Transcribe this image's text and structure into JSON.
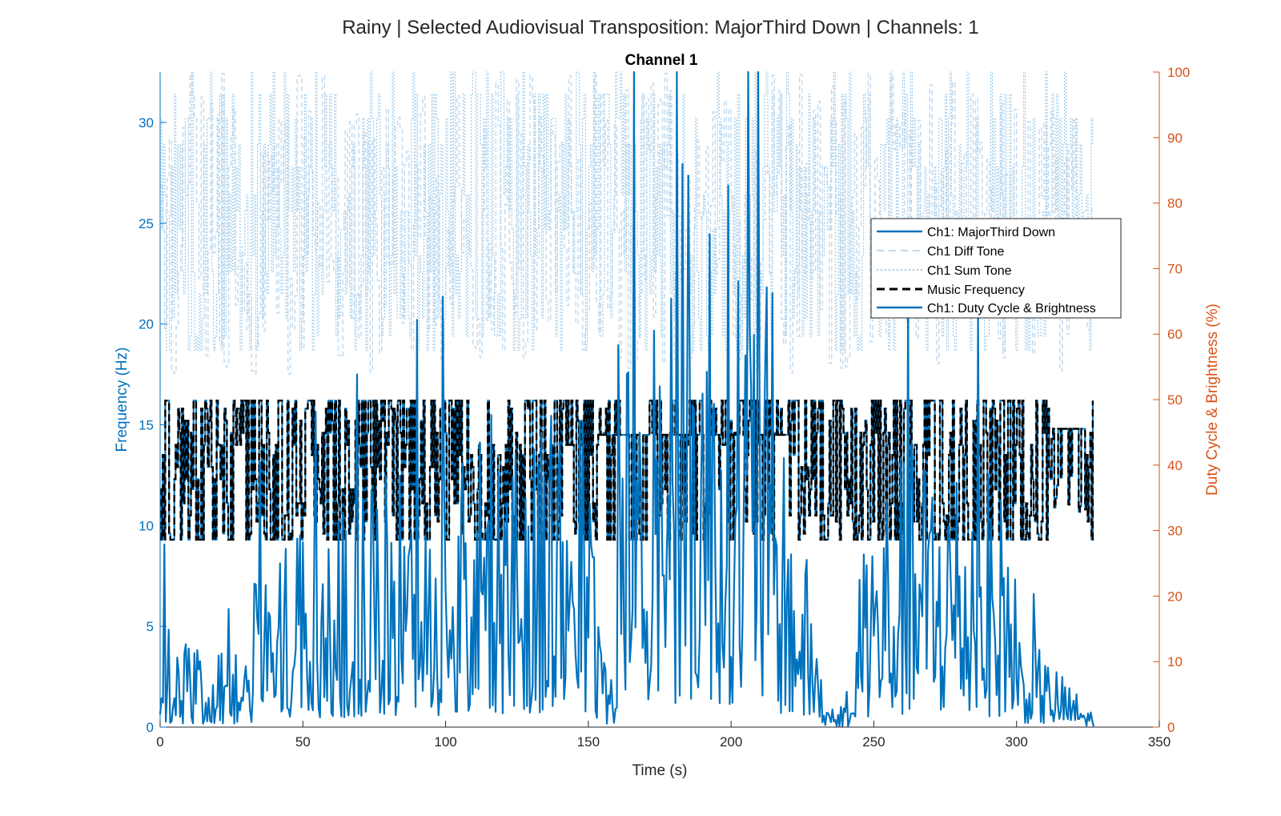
{
  "colors": {
    "left_axis": "#0072BD",
    "right_axis": "#D95319",
    "main_freq": "#0072BD",
    "diff_tone": "#BFD9EF",
    "sum_tone": "#7FB8E0",
    "music_freq": "#000000",
    "duty": "#0072BD",
    "axis_black": "#262626"
  },
  "chart_data": {
    "type": "line",
    "suptitle": "Rainy | Selected Audiovisual Transposition: MajorThird Down | Channels: 1",
    "title": "Channel 1",
    "xlabel": "Time (s)",
    "ylabel_left": "Frequency (Hz)",
    "ylabel_right": "Duty Cycle & Brightness (%)",
    "xlim": [
      0,
      350
    ],
    "ylim_left": [
      0,
      32.5
    ],
    "ylim_right": [
      0,
      100
    ],
    "x_ticks": [
      "0",
      "50",
      "100",
      "150",
      "200",
      "250",
      "300",
      "350"
    ],
    "y_ticks_left": [
      "0",
      "5",
      "10",
      "15",
      "20",
      "25",
      "30"
    ],
    "y_ticks_right": [
      "0",
      "10",
      "20",
      "30",
      "40",
      "50",
      "60",
      "70",
      "80",
      "90",
      "100"
    ],
    "grid": false,
    "legend_position": "top-right",
    "series": [
      {
        "name": "Ch1: MajorThird Down",
        "axis": "left",
        "style": "solid",
        "x_range": [
          0,
          327
        ],
        "value_range": [
          9.3,
          16.2
        ]
      },
      {
        "name": "Ch1 Diff Tone",
        "axis": "left",
        "style": "dashed",
        "x_range": [
          0,
          327
        ],
        "value_range": [
          9.3,
          16.2
        ]
      },
      {
        "name": "Ch1 Sum Tone",
        "axis": "left",
        "style": "dotted",
        "x_range": [
          0,
          327
        ],
        "value_range": [
          17.5,
          32.5
        ]
      },
      {
        "name": "Music Frequency",
        "axis": "left",
        "style": "dashed",
        "x_range": [
          0,
          327
        ],
        "value_range": [
          9.3,
          16.2
        ]
      },
      {
        "name": "Ch1: Duty Cycle & Brightness",
        "axis": "right",
        "style": "solid",
        "x_range": [
          0,
          327
        ],
        "value_range": [
          0,
          100
        ]
      }
    ]
  }
}
